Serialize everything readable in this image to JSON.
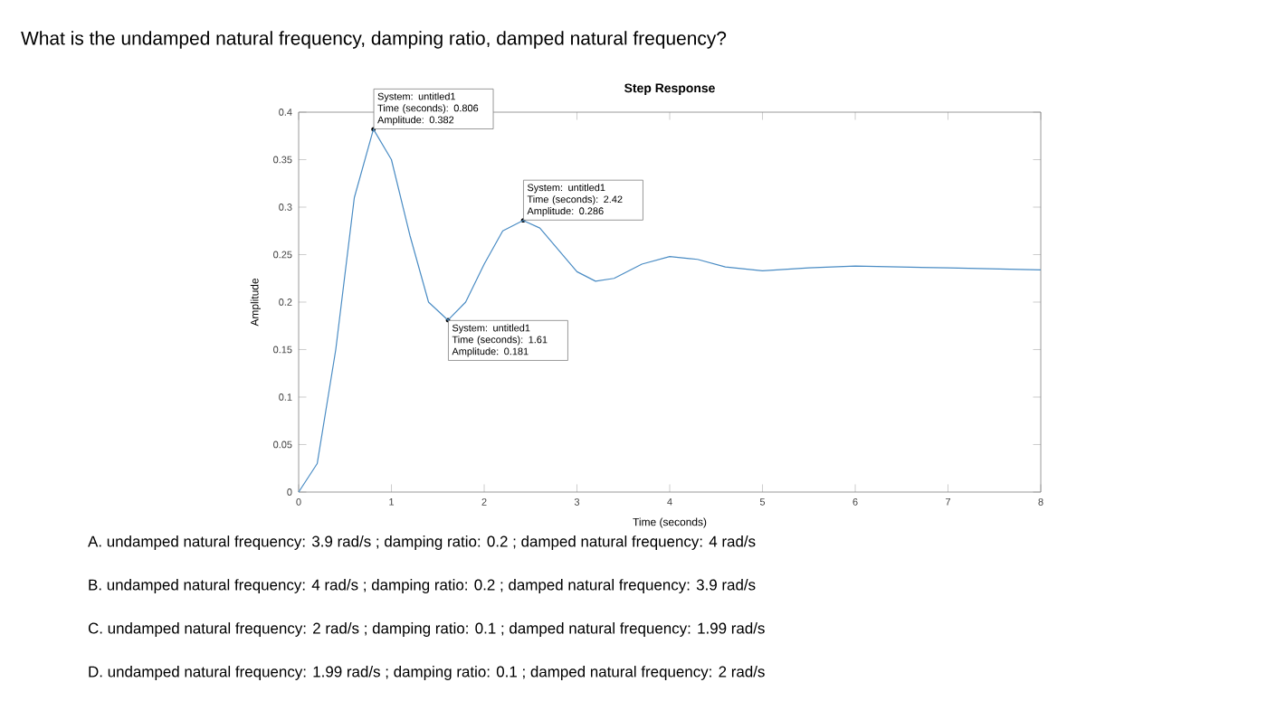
{
  "chart_data": {
    "type": "line",
    "title": "What is the undamped natural frequency, damping ratio, damped natural frequency?",
    "subtitle": "Step Response",
    "xlabel": "Time (seconds)",
    "ylabel": "Amplitude",
    "x": [
      0,
      0.2,
      0.4,
      0.6,
      0.806,
      1.0,
      1.2,
      1.4,
      1.61,
      1.8,
      2.0,
      2.2,
      2.42,
      2.6,
      2.8,
      3.0,
      3.2,
      3.4,
      3.7,
      4.0,
      4.3,
      4.6,
      5.0,
      5.5,
      6.0,
      7.0,
      8.0
    ],
    "series": [
      {
        "color": "#4a8cc4",
        "values": [
          0,
          0.03,
          0.15,
          0.31,
          0.382,
          0.35,
          0.27,
          0.2,
          0.181,
          0.2,
          0.24,
          0.275,
          0.286,
          0.278,
          0.255,
          0.232,
          0.222,
          0.225,
          0.24,
          0.248,
          0.245,
          0.237,
          0.233,
          0.236,
          0.238,
          0.236,
          0.234
        ]
      }
    ],
    "xlim": [
      0,
      8
    ],
    "ylim": [
      0,
      0.4
    ],
    "xticks": [
      0,
      1,
      2,
      3,
      4,
      5,
      6,
      7,
      8
    ],
    "yticks": [
      0,
      0.05,
      0.1,
      0.15,
      0.2,
      0.25,
      0.3,
      0.35,
      0.4
    ],
    "annotations": [
      {
        "text": "System: untitled1 Time (seconds): 0.806 Amplitude: 0.382",
        "x": 0.806,
        "y": 0.382
      },
      {
        "text": "System: untitled1 Time (seconds): 2.42 Amplitude: 0.286",
        "x": 2.42,
        "y": 0.286
      },
      {
        "text": "System: untitled1 Time (seconds): 1.61 Amplitude: 0.181",
        "x": 1.61,
        "y": 0.181
      },
      "A. undamped natural frequency: 3.9 rad/s ; damping ratio: 0.2 ; damped natural frequency: 4 rad/s",
      "B. undamped natural frequency: 4 rad/s ; damping ratio: 0.2 ; damped natural frequency: 3.9 rad/s",
      "C. undamped natural frequency: 2 rad/s ; damping ratio: 0.1 ; damped natural frequency: 1.99 rad/s",
      "D. undamped natural frequency: 1.99 rad/s ; damping ratio: 0.1 ; damped natural frequency: 2 rad/s"
    ]
  }
}
